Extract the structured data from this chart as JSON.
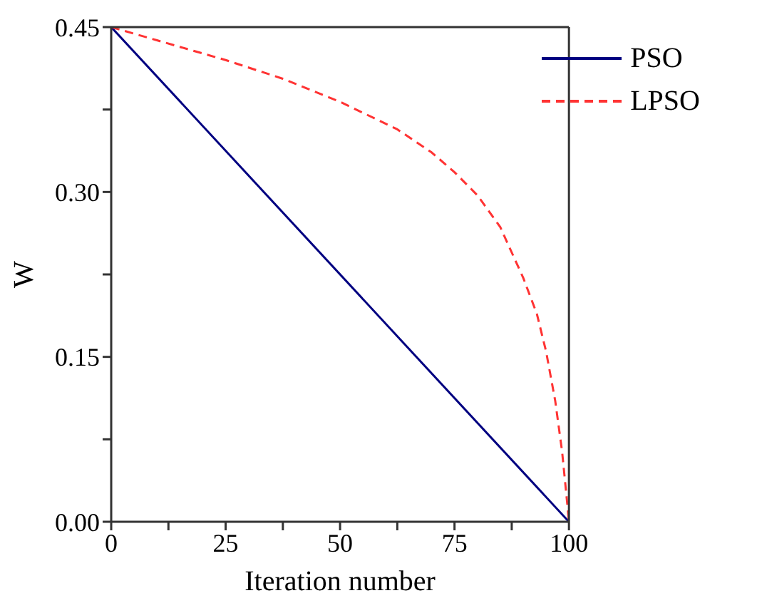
{
  "chart_data": {
    "type": "line",
    "xlabel": "Iteration number",
    "ylabel": "W",
    "xlim": [
      0,
      100
    ],
    "ylim": [
      0,
      0.45
    ],
    "xticks": [
      0,
      {
        "value": 12.5,
        "label": null
      },
      25,
      {
        "value": 37.5,
        "label": null
      },
      50,
      {
        "value": 62.5,
        "label": null
      },
      75,
      {
        "value": 87.5,
        "label": null
      },
      100
    ],
    "yticks": [
      {
        "value": 0,
        "label": "0.00"
      },
      {
        "value": 0.075,
        "label": null
      },
      {
        "value": 0.15,
        "label": "0.15"
      },
      {
        "value": 0.225,
        "label": null
      },
      {
        "value": 0.3,
        "label": "0.30"
      },
      {
        "value": 0.375,
        "label": null
      },
      {
        "value": 0.45,
        "label": "0.45"
      }
    ],
    "legend": "top right",
    "marker": "none",
    "series": [
      {
        "name": "PSO",
        "color": "#000080",
        "line_style": "solid",
        "x": [
          0,
          100
        ],
        "values": [
          0.45,
          0
        ]
      },
      {
        "name": "LPSO",
        "color": "#ff3333",
        "line_style": "dashed",
        "x": [
          0,
          10,
          25,
          37.5,
          50,
          62.5,
          70,
          75,
          80,
          85,
          90,
          93,
          95,
          97,
          98.5,
          99.5,
          100
        ],
        "values": [
          0.45,
          0.438,
          0.42,
          0.403,
          0.382,
          0.357,
          0.336,
          0.318,
          0.297,
          0.268,
          0.222,
          0.189,
          0.155,
          0.11,
          0.064,
          0.022,
          0
        ]
      }
    ]
  }
}
